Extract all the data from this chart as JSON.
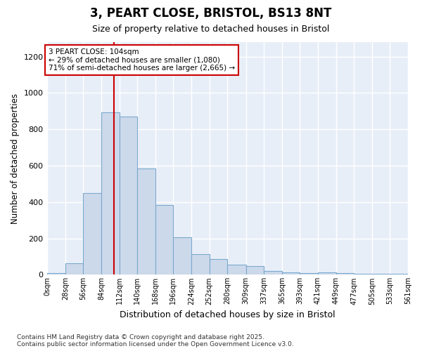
{
  "title_line1": "3, PEART CLOSE, BRISTOL, BS13 8NT",
  "title_line2": "Size of property relative to detached houses in Bristol",
  "xlabel": "Distribution of detached houses by size in Bristol",
  "ylabel": "Number of detached properties",
  "bin_edges": [
    0,
    28,
    56,
    84,
    112,
    140,
    168,
    196,
    224,
    252,
    280,
    309,
    337,
    365,
    393,
    421,
    449,
    477,
    505,
    533,
    561
  ],
  "bin_labels": [
    "0sqm",
    "28sqm",
    "56sqm",
    "84sqm",
    "112sqm",
    "140sqm",
    "168sqm",
    "196sqm",
    "224sqm",
    "252sqm",
    "280sqm",
    "309sqm",
    "337sqm",
    "365sqm",
    "393sqm",
    "421sqm",
    "449sqm",
    "477sqm",
    "505sqm",
    "533sqm",
    "561sqm"
  ],
  "bar_heights": [
    10,
    65,
    450,
    895,
    870,
    585,
    385,
    205,
    115,
    85,
    55,
    48,
    22,
    15,
    10,
    15,
    10,
    5,
    5,
    5
  ],
  "bar_color": "#ccd9ea",
  "bar_edge_color": "#7baacf",
  "vline_x": 104,
  "vline_color": "#cc0000",
  "ylim": [
    0,
    1280
  ],
  "yticks": [
    0,
    200,
    400,
    600,
    800,
    1000,
    1200
  ],
  "annotation_text": "3 PEART CLOSE: 104sqm\n← 29% of detached houses are smaller (1,080)\n71% of semi-detached houses are larger (2,665) →",
  "annotation_box_color": "#cc0000",
  "footnote_line1": "Contains HM Land Registry data © Crown copyright and database right 2025.",
  "footnote_line2": "Contains public sector information licensed under the Open Government Licence v3.0.",
  "plot_bg_color": "#e8eef8",
  "fig_bg_color": "#ffffff",
  "grid_color": "#ffffff"
}
